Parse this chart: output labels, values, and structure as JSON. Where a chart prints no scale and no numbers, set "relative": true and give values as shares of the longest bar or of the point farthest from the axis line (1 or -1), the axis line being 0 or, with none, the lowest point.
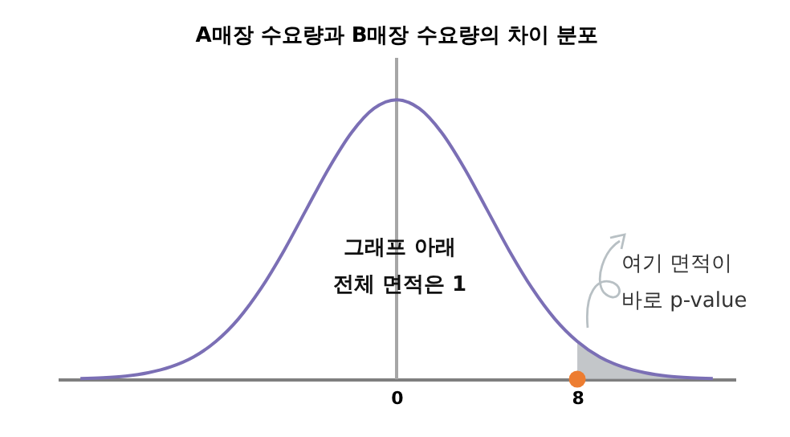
{
  "chart_data": {
    "type": "line",
    "title": "A매장 수요량과 B매장 수요량의 차이 분포",
    "annotations": [
      "그래프 아래\n전체 면적은 1",
      "여기 면적이\n바로 p-value"
    ],
    "relative": true,
    "x": [
      -14,
      -13,
      -12,
      -11,
      -10,
      -9,
      -8,
      -7,
      -6,
      -5,
      -4,
      -3,
      -2,
      -1,
      0,
      1,
      2,
      3,
      4,
      5,
      6,
      7,
      8,
      9,
      10,
      11,
      12,
      13,
      14
    ],
    "xlim": [
      -15,
      15
    ],
    "xticks": [
      0,
      8
    ],
    "series": [
      {
        "color": "#7b6fb5",
        "values": [
          0.002,
          0.005,
          0.011,
          0.023,
          0.044,
          0.079,
          0.135,
          0.216,
          0.325,
          0.458,
          0.607,
          0.755,
          0.882,
          0.969,
          1,
          0.969,
          0.882,
          0.755,
          0.607,
          0.458,
          0.325,
          0.216,
          0.135,
          0.079,
          0.044,
          0.023,
          0.011,
          0.005,
          0.002
        ]
      },
      {
        "type": "area",
        "color": "#b4b8bc",
        "x": [
          8,
          9,
          10,
          11,
          12,
          13,
          14
        ],
        "values": [
          0.135,
          0.079,
          0.044,
          0.023,
          0.011,
          0.005,
          0.002
        ]
      },
      {
        "type": "scatter",
        "color": "#ed7d31",
        "marker": "circle",
        "x": [
          8
        ],
        "values": [
          0
        ]
      }
    ],
    "ref_lines": [
      {
        "axis": "x",
        "value": 0,
        "color": "#a6a6a6"
      }
    ]
  }
}
